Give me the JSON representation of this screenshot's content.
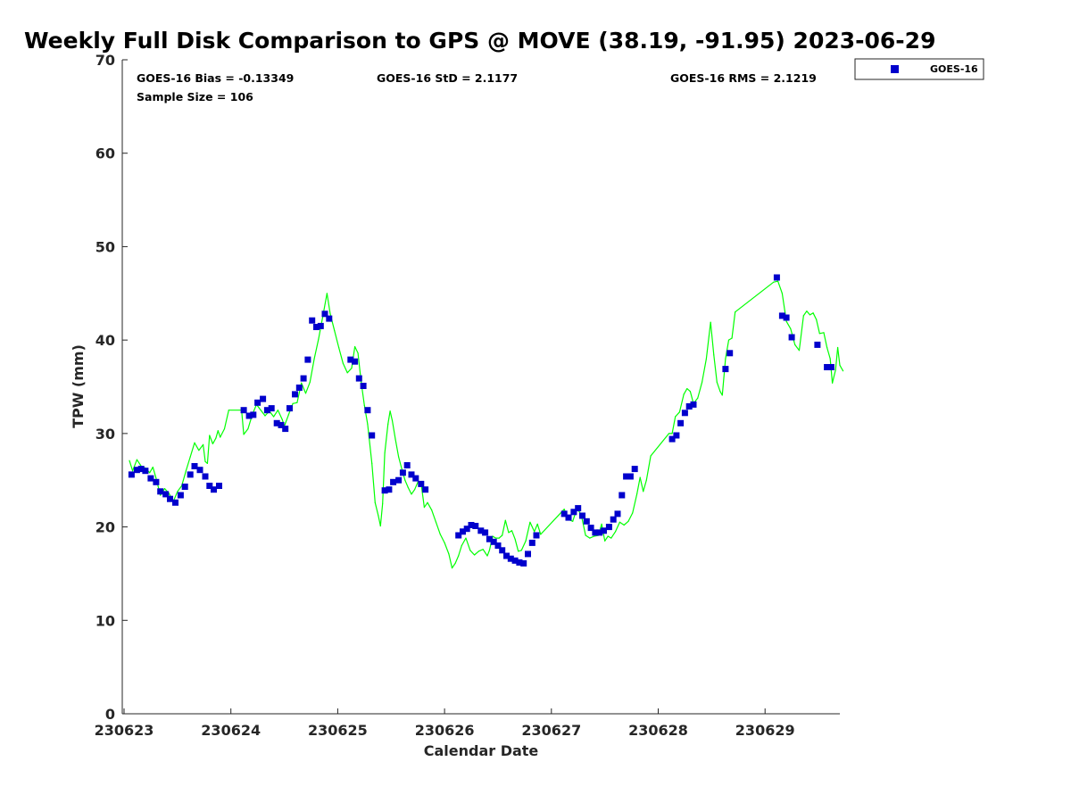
{
  "chart_data": {
    "type": "scatter",
    "title": "Weekly Full Disk Comparison to GPS @ MOVE (38.19, -91.95) 2023-06-29",
    "xlabel": "Calendar Date",
    "ylabel": "TPW (mm)",
    "xlim": [
      0,
      6.7
    ],
    "ylim": [
      0,
      70
    ],
    "x_ticks": [
      {
        "value": 0,
        "label": "230623"
      },
      {
        "value": 1,
        "label": "230624"
      },
      {
        "value": 2,
        "label": "230625"
      },
      {
        "value": 3,
        "label": "230626"
      },
      {
        "value": 4,
        "label": "230627"
      },
      {
        "value": 5,
        "label": "230628"
      },
      {
        "value": 6,
        "label": "230629"
      }
    ],
    "y_ticks": [
      0,
      10,
      20,
      30,
      40,
      50,
      60,
      70
    ],
    "stats": {
      "bias": "GOES-16 Bias = -0.13349",
      "std": "GOES-16 StD = 2.1177",
      "rms": "GOES-16 RMS = 2.1219",
      "sample": "Sample Size = 106"
    },
    "legend": {
      "position": "top-right",
      "entries": [
        "GOES-16"
      ]
    },
    "colors": {
      "scatter": "#0000cc",
      "gps_line": "#00ff00"
    },
    "series": [
      {
        "name": "GOES-16",
        "type": "scatter",
        "points": [
          [
            0.07,
            25.6
          ],
          [
            0.12,
            26.1
          ],
          [
            0.16,
            26.2
          ],
          [
            0.2,
            26.0
          ],
          [
            0.25,
            25.2
          ],
          [
            0.3,
            24.8
          ],
          [
            0.34,
            23.8
          ],
          [
            0.39,
            23.5
          ],
          [
            0.43,
            23.0
          ],
          [
            0.48,
            22.6
          ],
          [
            0.53,
            23.4
          ],
          [
            0.57,
            24.3
          ],
          [
            0.62,
            25.6
          ],
          [
            0.66,
            26.5
          ],
          [
            0.71,
            26.1
          ],
          [
            0.76,
            25.4
          ],
          [
            0.8,
            24.4
          ],
          [
            0.84,
            24.0
          ],
          [
            0.89,
            24.4
          ],
          [
            1.12,
            32.5
          ],
          [
            1.17,
            31.9
          ],
          [
            1.21,
            32.0
          ],
          [
            1.25,
            33.3
          ],
          [
            1.3,
            33.7
          ],
          [
            1.34,
            32.5
          ],
          [
            1.38,
            32.7
          ],
          [
            1.43,
            31.1
          ],
          [
            1.47,
            30.9
          ],
          [
            1.51,
            30.5
          ],
          [
            1.55,
            32.7
          ],
          [
            1.6,
            34.2
          ],
          [
            1.64,
            34.9
          ],
          [
            1.68,
            35.9
          ],
          [
            1.72,
            37.9
          ],
          [
            1.76,
            42.1
          ],
          [
            1.8,
            41.4
          ],
          [
            1.84,
            41.5
          ],
          [
            1.88,
            42.8
          ],
          [
            1.92,
            42.3
          ],
          [
            2.12,
            37.9
          ],
          [
            2.16,
            37.7
          ],
          [
            2.2,
            35.9
          ],
          [
            2.24,
            35.1
          ],
          [
            2.28,
            32.5
          ],
          [
            2.32,
            29.8
          ],
          [
            2.44,
            23.9
          ],
          [
            2.48,
            24.0
          ],
          [
            2.52,
            24.8
          ],
          [
            2.57,
            25.0
          ],
          [
            2.61,
            25.8
          ],
          [
            2.65,
            26.6
          ],
          [
            2.69,
            25.6
          ],
          [
            2.73,
            25.2
          ],
          [
            2.78,
            24.6
          ],
          [
            2.82,
            24.0
          ],
          [
            3.13,
            19.1
          ],
          [
            3.17,
            19.5
          ],
          [
            3.21,
            19.8
          ],
          [
            3.25,
            20.2
          ],
          [
            3.29,
            20.1
          ],
          [
            3.34,
            19.6
          ],
          [
            3.38,
            19.4
          ],
          [
            3.42,
            18.7
          ],
          [
            3.46,
            18.4
          ],
          [
            3.5,
            18.0
          ],
          [
            3.54,
            17.5
          ],
          [
            3.58,
            16.9
          ],
          [
            3.62,
            16.6
          ],
          [
            3.66,
            16.4
          ],
          [
            3.7,
            16.2
          ],
          [
            3.74,
            16.1
          ],
          [
            3.78,
            17.1
          ],
          [
            3.82,
            18.3
          ],
          [
            3.86,
            19.1
          ],
          [
            4.12,
            21.4
          ],
          [
            4.16,
            21.0
          ],
          [
            4.21,
            21.6
          ],
          [
            4.25,
            22.0
          ],
          [
            4.29,
            21.2
          ],
          [
            4.33,
            20.6
          ],
          [
            4.37,
            19.9
          ],
          [
            4.41,
            19.4
          ],
          [
            4.45,
            19.4
          ],
          [
            4.49,
            19.6
          ],
          [
            4.54,
            20.0
          ],
          [
            4.58,
            20.8
          ],
          [
            4.62,
            21.4
          ],
          [
            4.66,
            23.4
          ],
          [
            4.7,
            25.4
          ],
          [
            4.74,
            25.4
          ],
          [
            4.78,
            26.2
          ],
          [
            5.13,
            29.4
          ],
          [
            5.17,
            29.8
          ],
          [
            5.21,
            31.1
          ],
          [
            5.25,
            32.2
          ],
          [
            5.29,
            32.9
          ],
          [
            5.33,
            33.1
          ],
          [
            5.63,
            36.9
          ],
          [
            5.67,
            38.6
          ],
          [
            6.11,
            46.7
          ],
          [
            6.16,
            42.6
          ],
          [
            6.2,
            42.4
          ],
          [
            6.25,
            40.3
          ],
          [
            6.49,
            39.5
          ],
          [
            6.58,
            37.1
          ],
          [
            6.62,
            37.1
          ]
        ]
      },
      {
        "name": "GPS",
        "type": "line",
        "points": [
          [
            0.05,
            27.1
          ],
          [
            0.08,
            26.0
          ],
          [
            0.12,
            27.2
          ],
          [
            0.16,
            26.5
          ],
          [
            0.2,
            26.3
          ],
          [
            0.24,
            25.8
          ],
          [
            0.27,
            26.4
          ],
          [
            0.3,
            25.2
          ],
          [
            0.34,
            23.4
          ],
          [
            0.38,
            24.1
          ],
          [
            0.42,
            23.6
          ],
          [
            0.46,
            22.7
          ],
          [
            0.5,
            23.8
          ],
          [
            0.54,
            24.4
          ],
          [
            0.58,
            26.0
          ],
          [
            0.62,
            27.5
          ],
          [
            0.66,
            29.0
          ],
          [
            0.7,
            28.2
          ],
          [
            0.74,
            28.8
          ],
          [
            0.76,
            27.0
          ],
          [
            0.78,
            26.8
          ],
          [
            0.8,
            29.8
          ],
          [
            0.83,
            28.9
          ],
          [
            0.86,
            29.5
          ],
          [
            0.88,
            30.3
          ],
          [
            0.9,
            29.6
          ],
          [
            0.94,
            30.5
          ],
          [
            0.98,
            32.5
          ],
          [
            1.1,
            32.5
          ],
          [
            1.12,
            29.9
          ],
          [
            1.16,
            30.5
          ],
          [
            1.2,
            32.0
          ],
          [
            1.24,
            33.1
          ],
          [
            1.28,
            32.5
          ],
          [
            1.32,
            31.9
          ],
          [
            1.36,
            32.4
          ],
          [
            1.4,
            31.8
          ],
          [
            1.44,
            32.5
          ],
          [
            1.48,
            31.5
          ],
          [
            1.5,
            30.8
          ],
          [
            1.54,
            32.0
          ],
          [
            1.58,
            33.2
          ],
          [
            1.62,
            33.3
          ],
          [
            1.66,
            35.4
          ],
          [
            1.7,
            34.3
          ],
          [
            1.74,
            35.5
          ],
          [
            1.78,
            38.0
          ],
          [
            1.82,
            40.1
          ],
          [
            1.86,
            42.5
          ],
          [
            1.9,
            45.0
          ],
          [
            1.93,
            42.8
          ],
          [
            1.97,
            41.0
          ],
          [
            2.01,
            39.2
          ],
          [
            2.05,
            37.5
          ],
          [
            2.09,
            36.5
          ],
          [
            2.13,
            37.0
          ],
          [
            2.16,
            39.3
          ],
          [
            2.19,
            38.6
          ],
          [
            2.22,
            35.5
          ],
          [
            2.25,
            33.0
          ],
          [
            2.28,
            31.0
          ],
          [
            2.32,
            26.8
          ],
          [
            2.35,
            22.6
          ],
          [
            2.38,
            21.2
          ],
          [
            2.4,
            20.1
          ],
          [
            2.42,
            22.5
          ],
          [
            2.44,
            27.9
          ],
          [
            2.47,
            31.0
          ],
          [
            2.49,
            32.4
          ],
          [
            2.51,
            31.4
          ],
          [
            2.54,
            29.4
          ],
          [
            2.57,
            27.5
          ],
          [
            2.6,
            26.2
          ],
          [
            2.63,
            25.0
          ],
          [
            2.66,
            24.2
          ],
          [
            2.69,
            23.5
          ],
          [
            2.72,
            24.0
          ],
          [
            2.75,
            24.8
          ],
          [
            2.78,
            24.7
          ],
          [
            2.81,
            22.1
          ],
          [
            2.84,
            22.6
          ],
          [
            2.88,
            21.8
          ],
          [
            2.92,
            20.5
          ],
          [
            2.96,
            19.2
          ],
          [
            3.0,
            18.3
          ],
          [
            3.04,
            17.1
          ],
          [
            3.07,
            15.6
          ],
          [
            3.1,
            16.1
          ],
          [
            3.13,
            16.9
          ],
          [
            3.16,
            18.0
          ],
          [
            3.2,
            18.8
          ],
          [
            3.24,
            17.5
          ],
          [
            3.28,
            17.0
          ],
          [
            3.32,
            17.4
          ],
          [
            3.36,
            17.6
          ],
          [
            3.4,
            16.9
          ],
          [
            3.42,
            17.5
          ],
          [
            3.45,
            19.0
          ],
          [
            3.48,
            18.8
          ],
          [
            3.51,
            18.8
          ],
          [
            3.54,
            19.1
          ],
          [
            3.57,
            20.7
          ],
          [
            3.6,
            19.4
          ],
          [
            3.63,
            19.6
          ],
          [
            3.66,
            18.7
          ],
          [
            3.69,
            17.4
          ],
          [
            3.72,
            17.5
          ],
          [
            3.76,
            18.5
          ],
          [
            3.8,
            20.5
          ],
          [
            3.84,
            19.5
          ],
          [
            3.87,
            20.3
          ],
          [
            3.9,
            19.2
          ],
          [
            4.12,
            21.9
          ],
          [
            4.16,
            20.8
          ],
          [
            4.2,
            20.6
          ],
          [
            4.24,
            22.0
          ],
          [
            4.28,
            21.3
          ],
          [
            4.32,
            19.1
          ],
          [
            4.36,
            18.8
          ],
          [
            4.4,
            19.0
          ],
          [
            4.44,
            19.1
          ],
          [
            4.47,
            20.3
          ],
          [
            4.5,
            18.5
          ],
          [
            4.53,
            19.0
          ],
          [
            4.56,
            18.8
          ],
          [
            4.6,
            19.5
          ],
          [
            4.64,
            20.5
          ],
          [
            4.68,
            20.2
          ],
          [
            4.72,
            20.6
          ],
          [
            4.76,
            21.5
          ],
          [
            4.8,
            23.5
          ],
          [
            4.83,
            25.3
          ],
          [
            4.86,
            23.8
          ],
          [
            4.89,
            25.0
          ],
          [
            4.93,
            27.6
          ],
          [
            5.1,
            30.0
          ],
          [
            5.13,
            30.0
          ],
          [
            5.16,
            31.8
          ],
          [
            5.2,
            32.3
          ],
          [
            5.24,
            34.2
          ],
          [
            5.27,
            34.8
          ],
          [
            5.3,
            34.5
          ],
          [
            5.33,
            33.2
          ],
          [
            5.37,
            33.8
          ],
          [
            5.41,
            35.5
          ],
          [
            5.45,
            38.0
          ],
          [
            5.49,
            41.9
          ],
          [
            5.52,
            38.4
          ],
          [
            5.55,
            35.5
          ],
          [
            5.58,
            34.5
          ],
          [
            5.6,
            34.1
          ],
          [
            5.63,
            38.0
          ],
          [
            5.66,
            40.0
          ],
          [
            5.69,
            40.2
          ],
          [
            5.72,
            43.0
          ],
          [
            6.08,
            46.2
          ],
          [
            6.12,
            46.3
          ],
          [
            6.16,
            45.0
          ],
          [
            6.2,
            42.0
          ],
          [
            6.24,
            41.2
          ],
          [
            6.28,
            39.5
          ],
          [
            6.32,
            38.9
          ],
          [
            6.36,
            42.6
          ],
          [
            6.39,
            43.1
          ],
          [
            6.42,
            42.7
          ],
          [
            6.45,
            42.9
          ],
          [
            6.48,
            42.2
          ],
          [
            6.51,
            40.7
          ],
          [
            6.55,
            40.8
          ],
          [
            6.58,
            39.2
          ],
          [
            6.61,
            38.0
          ],
          [
            6.63,
            35.4
          ],
          [
            6.66,
            36.8
          ],
          [
            6.68,
            39.2
          ],
          [
            6.7,
            37.3
          ],
          [
            6.73,
            36.7
          ]
        ]
      }
    ]
  }
}
